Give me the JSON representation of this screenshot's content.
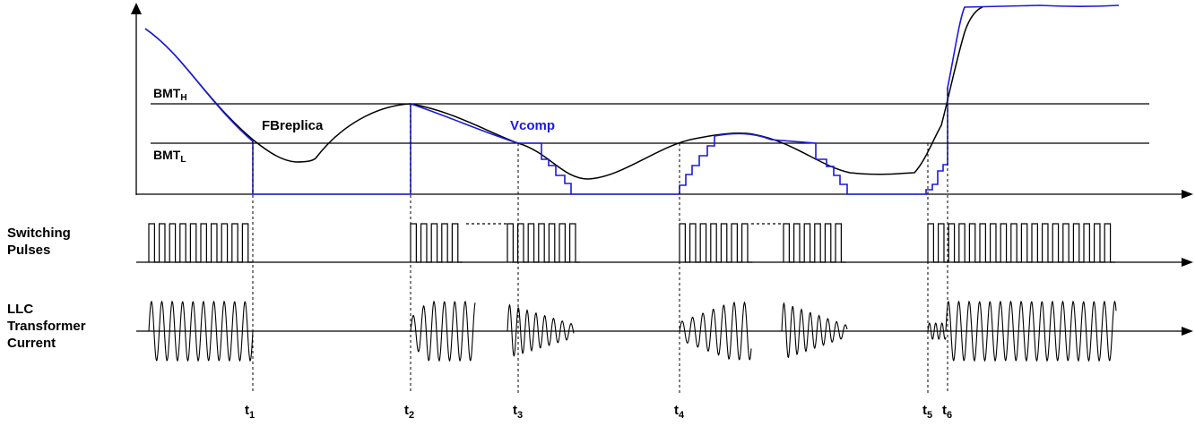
{
  "levels": {
    "bmt_high": {
      "base": "BMT",
      "sub": "H"
    },
    "bmt_low": {
      "base": "BMT",
      "sub": "L"
    }
  },
  "signals": {
    "fb_replica": "FBreplica",
    "vcomp": "Vcomp"
  },
  "rows": {
    "switching": [
      "Switching",
      "Pulses"
    ],
    "llc": [
      "LLC",
      "Transformer",
      "Current"
    ]
  },
  "time_markers": [
    {
      "base": "t",
      "sub": "1"
    },
    {
      "base": "t",
      "sub": "2"
    },
    {
      "base": "t",
      "sub": "3"
    },
    {
      "base": "t",
      "sub": "4"
    },
    {
      "base": "t",
      "sub": "5"
    },
    {
      "base": "t",
      "sub": "6"
    }
  ],
  "colors": {
    "fb_replica": "#000000",
    "vcomp": "#1a1adb",
    "axes": "#000000"
  }
}
